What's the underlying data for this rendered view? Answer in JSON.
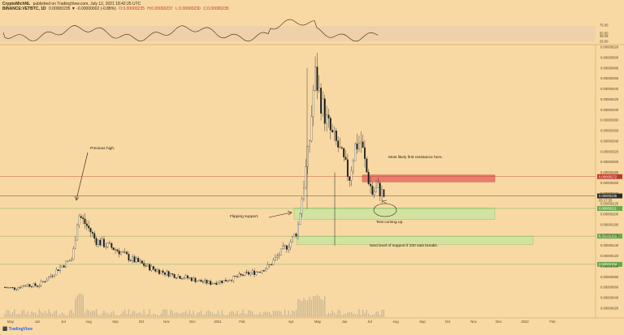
{
  "header": {
    "publisher": "CryptoMichNL",
    "published": "published on TradingView.com, July 12, 2021 18:42:25 UTC",
    "symbol": "BINANCE:VETBTC, 1D",
    "change": "0.00000235 ▼ -0.00000002 (-0.88%)",
    "o": "O:0.00000235",
    "h": "H:0.00000237",
    "l": "L:0.00000230",
    "c": "C:0.00000235"
  },
  "colors": {
    "background": "#f8d9a4",
    "candle_up": "#f5f0e6",
    "candle_down": "#1a1a1a",
    "resistance_zone": "#e8756a",
    "support_zone": "#cfe3a0",
    "support_line": "#6aa84f",
    "resistance_line": "#c0392b",
    "rsi_band": "#eed1a8",
    "tradingview_blue": "#2962ff"
  },
  "footer": {
    "brand": "TradingView"
  },
  "chart_data": {
    "type": "candlestick",
    "symbol": "BINANCE:VETBTC",
    "timeframe": "1D",
    "x_labels": [
      "May",
      "Jun",
      "Jul",
      "Aug",
      "Sep",
      "Oct",
      "Nov",
      "Dec",
      "2021",
      "Feb",
      "Apr",
      "May",
      "Jun",
      "Jul",
      "Aug",
      "Sep",
      "Oct",
      "Nov",
      "Dec",
      "2022",
      "Feb"
    ],
    "y_labels": [
      "0.00000520",
      "0.00000500",
      "0.00000480",
      "0.00000460",
      "0.00000440",
      "0.00000420",
      "0.00000400",
      "0.00000380",
      "0.00000360",
      "0.00000340",
      "0.00000320",
      "0.00000300",
      "0.00000280",
      "0.00000260",
      "0.00000240",
      "0.00000220",
      "0.00000200",
      "0.00000180",
      "0.00000160",
      "0.00000140",
      "0.00000120",
      "0.00000100",
      "0.00000080",
      "0.00000060",
      "0.00000040",
      "0.00000020"
    ],
    "ylim": [
      2e-07,
      5.2e-06
    ],
    "price_levels": [
      {
        "label": "0.00000272",
        "value": 2.72e-06,
        "color": "#c0392b"
      },
      {
        "label": "0.00000235",
        "value": 2.35e-06,
        "color": "#2b2b2b"
      },
      {
        "label": "0.00000211",
        "value": 2.11e-06,
        "color": "#6aa84f"
      },
      {
        "label": "0.00000158",
        "value": 1.58e-06,
        "color": "#6aa84f"
      },
      {
        "label": "0.00000104",
        "value": 1.04e-06,
        "color": "#6aa84f"
      }
    ],
    "countdown": "05:17:35",
    "zones": [
      {
        "name": "resistance",
        "from": 2.62e-06,
        "to": 2.75e-06
      },
      {
        "name": "support",
        "from": 1.9e-06,
        "to": 2.12e-06
      },
      {
        "name": "lower-support",
        "from": 1.42e-06,
        "to": 1.58e-06
      }
    ],
    "annotations": [
      "Previous high.",
      "Most likely first resistance here.",
      "Flipping support.",
      "Test coming up.",
      "Next level of support if 200 sats breaks."
    ],
    "rsi": {
      "levels": [
        "75.00",
        "50.00",
        "25.00"
      ],
      "last": "38.29"
    },
    "price_path": [
      [
        0,
        6e-07
      ],
      [
        2,
        5.8e-07
      ],
      [
        4,
        6.5e-07
      ],
      [
        6,
        6.3e-07
      ],
      [
        8,
        8e-07
      ],
      [
        10,
        1e-06
      ],
      [
        12,
        1.15e-06
      ],
      [
        13,
        2e-06
      ],
      [
        14,
        1.85e-06
      ],
      [
        15,
        1.7e-06
      ],
      [
        16,
        1.5e-06
      ],
      [
        18,
        1.4e-06
      ],
      [
        20,
        1.3e-06
      ],
      [
        22,
        1.15e-06
      ],
      [
        24,
        1.05e-06
      ],
      [
        26,
        9.5e-07
      ],
      [
        28,
        8.8e-07
      ],
      [
        30,
        8.2e-07
      ],
      [
        32,
        7.8e-07
      ],
      [
        34,
        7.2e-07
      ],
      [
        36,
        6.8e-07
      ],
      [
        38,
        7.2e-07
      ],
      [
        40,
        7.8e-07
      ],
      [
        42,
        8.5e-07
      ],
      [
        44,
        9e-07
      ],
      [
        46,
        1e-06
      ],
      [
        48,
        1.25e-06
      ],
      [
        50,
        1.5e-06
      ],
      [
        51,
        1.7e-06
      ],
      [
        52,
        2.5e-06
      ],
      [
        53,
        3.3e-06
      ],
      [
        54,
        4.7e-06
      ],
      [
        55,
        4.2e-06
      ],
      [
        56,
        3.8e-06
      ],
      [
        57,
        3.5e-06
      ],
      [
        58,
        3.3e-06
      ],
      [
        59,
        3e-06
      ],
      [
        60,
        2.7e-06
      ],
      [
        61,
        3.3e-06
      ],
      [
        62,
        3.4e-06
      ],
      [
        63,
        2.8e-06
      ],
      [
        64,
        2.4e-06
      ],
      [
        65,
        2.5e-06
      ],
      [
        66,
        2.35e-06
      ]
    ]
  },
  "x_positions": [
    13,
    46,
    78,
    109,
    142,
    174,
    205,
    237,
    268,
    298,
    358,
    391,
    424,
    455,
    487,
    520,
    551,
    583,
    614,
    646,
    680
  ]
}
